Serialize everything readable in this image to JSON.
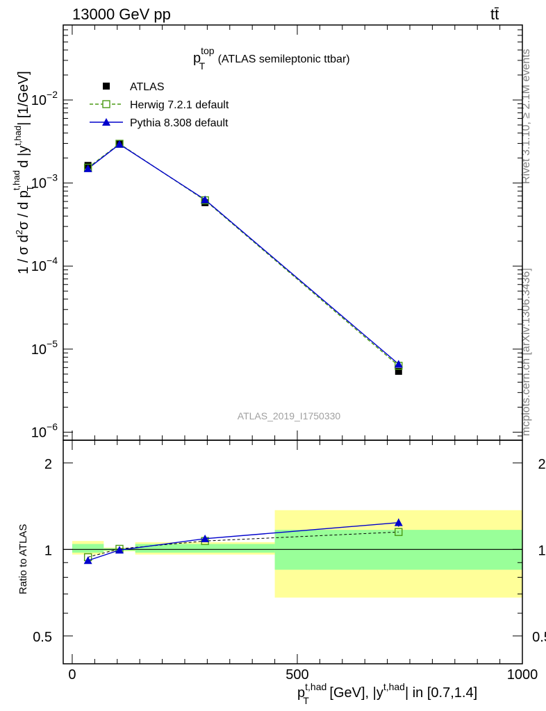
{
  "header": {
    "energy_label": "13000 GeV pp",
    "process_label": "tt̄"
  },
  "side_text": {
    "rivet": "Rivet 3.1.10, ≥ 2.1M events",
    "mcplots": "mcplots.cern.ch [arXiv:1306.3436]"
  },
  "chart_data": [
    {
      "type": "line",
      "title_main": "p",
      "title_sup": "top",
      "title_sub": "T",
      "title_rest": " (ATLAS semileptonic ttbar)",
      "ylabel": "1 / σ d²σ / d p_T^{t,had} d |y^{t,had}| [1/GeV]",
      "yscale": "log",
      "ylim": [
        8e-07,
        0.08
      ],
      "xlim": [
        -20,
        1000
      ],
      "yticks": [
        {
          "value": 1e-06,
          "base": "10",
          "exp": "−6"
        },
        {
          "value": 1e-05,
          "base": "10",
          "exp": "−5"
        },
        {
          "value": 0.0001,
          "base": "10",
          "exp": "−4"
        },
        {
          "value": 0.001,
          "base": "10",
          "exp": "−3"
        },
        {
          "value": 0.01,
          "base": "10",
          "exp": "−2"
        }
      ],
      "watermark": "ATLAS_2019_I1750330",
      "legend_position": "top-left",
      "x": [
        35,
        105,
        295,
        725
      ],
      "series": [
        {
          "name": "ATLAS",
          "style": "data",
          "color": "#000000",
          "values": [
            0.00163,
            0.00295,
            0.00058,
            5.4e-06
          ]
        },
        {
          "name": "Herwig 7.2.1 default",
          "style": "dashed-open-square",
          "color": "#4a9a14",
          "values": [
            0.00153,
            0.00297,
            0.00062,
            6.3e-06
          ]
        },
        {
          "name": "Pythia 8.308 default",
          "style": "solid-triangle",
          "color": "#0000cc",
          "values": [
            0.00149,
            0.00293,
            0.00063,
            6.6e-06
          ]
        }
      ]
    },
    {
      "type": "line",
      "ylabel": "Ratio to ATLAS",
      "yscale": "log",
      "ylim": [
        0.4,
        2.4
      ],
      "xlim": [
        -20,
        1000
      ],
      "yticks": [
        {
          "value": 0.5,
          "label": "0.5"
        },
        {
          "value": 1,
          "label": "1"
        },
        {
          "value": 2,
          "label": "2"
        }
      ],
      "xticks": [
        {
          "value": 0,
          "label": "0"
        },
        {
          "value": 500,
          "label": "500"
        },
        {
          "value": 1000,
          "label": "1000"
        }
      ],
      "xlabel_main": "p",
      "xlabel_sup": "t,had",
      "xlabel_sub": "T",
      "xlabel_mid": " [GeV], |y",
      "xlabel_sup2": "t,had",
      "xlabel_end": "| in [0.7,1.4]",
      "bands": [
        {
          "x0": 0,
          "x1": 70,
          "y_lo_outer": 0.96,
          "y_hi_outer": 1.07,
          "y_lo_inner": 0.975,
          "y_hi_inner": 1.045
        },
        {
          "x0": 70,
          "x1": 140,
          "y_lo_outer": 0.985,
          "y_hi_outer": 1.015,
          "y_lo_inner": 0.99,
          "y_hi_inner": 1.01
        },
        {
          "x0": 140,
          "x1": 450,
          "y_lo_outer": 0.96,
          "y_hi_outer": 1.06,
          "y_lo_inner": 0.975,
          "y_hi_inner": 1.045
        },
        {
          "x0": 450,
          "x1": 1000,
          "y_lo_outer": 0.68,
          "y_hi_outer": 1.37,
          "y_lo_inner": 0.85,
          "y_hi_inner": 1.17
        }
      ],
      "x": [
        35,
        105,
        295,
        725
      ],
      "series": [
        {
          "name": "Herwig 7.2.1 default",
          "color": "#4a9a14",
          "values": [
            0.94,
            1.005,
            1.07,
            1.15
          ]
        },
        {
          "name": "Pythia 8.308 default",
          "color": "#0000cc",
          "values": [
            0.915,
            0.995,
            1.09,
            1.24
          ],
          "errors": [
            0.008,
            0.006,
            0.01,
            0.04
          ]
        }
      ]
    }
  ]
}
